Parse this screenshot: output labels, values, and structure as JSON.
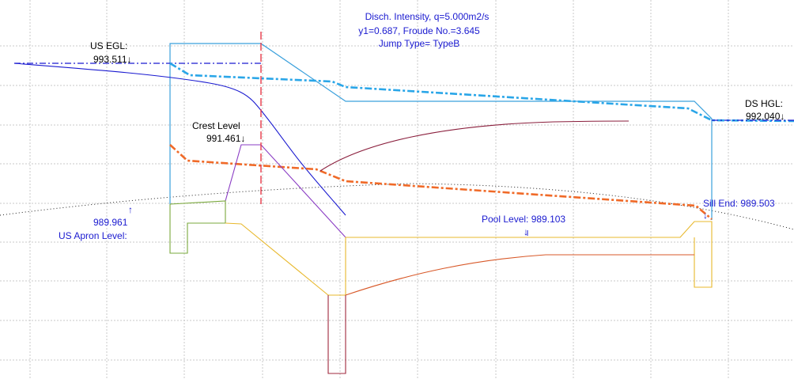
{
  "info": {
    "line1": "Disch. Intensity, q=5.000m2/s",
    "line2": "y1=0.687, Froude No.=3.645",
    "line3": "Jump Type= TypeB"
  },
  "labels": {
    "us_egl_title": "US EGL:",
    "us_egl_value": "993.511",
    "crest_title": "Crest Level",
    "crest_value": "991.461",
    "ds_hgl_title": "DS HGL:",
    "ds_hgl_value": "992.040",
    "apron_value": "989.961",
    "apron_title": "US Apron Level:",
    "pool_label": "Pool Level: 989.103",
    "sill_label": "Sill End: 989.503",
    "arrow_down": "↓",
    "arrow_up": "↑"
  },
  "colors": {
    "grid": "#c8c8c8",
    "egl_upstream": "#1a1ad0",
    "egl_main": "#2aa6e8",
    "hgl": "#f06a28",
    "structure_outline": "#3aa0dc",
    "crest_profile": "#8a3cc4",
    "apron": "#7aa83c",
    "floor": "#e8b82c",
    "basin": "#a0283c",
    "jump_curve": "#8a1e3c",
    "tail_curve": "#d85828",
    "centerline": "#e83848",
    "ground": "#202020",
    "label_blue": "#1a1ad0"
  }
}
